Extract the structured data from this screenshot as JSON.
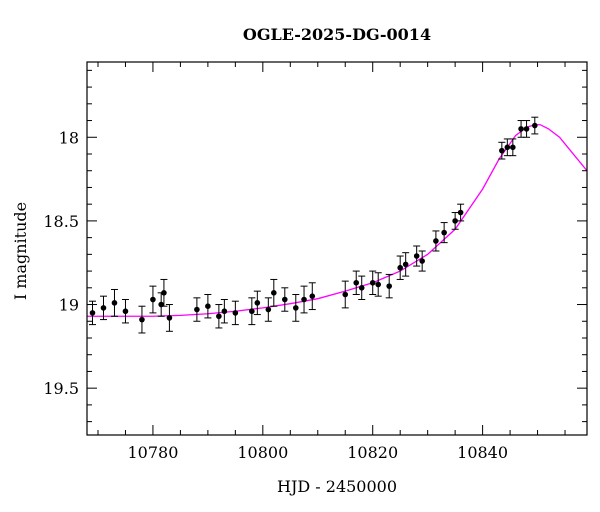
{
  "chart_data": {
    "type": "scatter",
    "title": "OGLE-2025-DG-0014",
    "xlabel": "HJD - 2450000",
    "ylabel": "I magnitude",
    "xlim": [
      10768,
      10859
    ],
    "ylim": [
      19.78,
      17.55
    ],
    "y_inverted": true,
    "grid": false,
    "x_ticks": [
      10780,
      10800,
      10820,
      10840
    ],
    "x_minor_step": 5,
    "y_ticks": [
      18,
      18.5,
      19,
      19.5
    ],
    "y_tick_labels": [
      "18",
      "18.5",
      "19",
      "19.5"
    ],
    "y_minor_step": 0.1,
    "colors": {
      "points": "#000000",
      "model": "#ff00ff",
      "axes": "#000000"
    },
    "series": [
      {
        "type": "scatter",
        "x": [
          10769,
          10771,
          10773,
          10775,
          10778,
          10780,
          10781.5,
          10782,
          10783,
          10788,
          10790,
          10792,
          10793,
          10795,
          10798,
          10799,
          10801,
          10802,
          10804,
          10806,
          10807.5,
          10809,
          10815,
          10817,
          10818,
          10820,
          10821,
          10823,
          10825,
          10826,
          10828,
          10829,
          10831.5,
          10833,
          10835,
          10836,
          10843.5,
          10844.5,
          10845.5,
          10847,
          10848,
          10849.5
        ],
        "y": [
          19.05,
          19.02,
          18.99,
          19.04,
          19.09,
          18.97,
          19.0,
          18.93,
          19.08,
          19.03,
          19.01,
          19.07,
          19.04,
          19.05,
          19.04,
          18.99,
          19.03,
          18.93,
          18.97,
          19.02,
          18.97,
          18.95,
          18.94,
          18.87,
          18.9,
          18.87,
          18.88,
          18.89,
          18.78,
          18.76,
          18.71,
          18.74,
          18.62,
          18.57,
          18.5,
          18.45,
          18.08,
          18.06,
          18.06,
          17.95,
          17.95,
          17.93
        ],
        "yerr": [
          0.07,
          0.07,
          0.08,
          0.07,
          0.08,
          0.08,
          0.07,
          0.08,
          0.08,
          0.07,
          0.07,
          0.07,
          0.07,
          0.07,
          0.08,
          0.07,
          0.07,
          0.08,
          0.07,
          0.08,
          0.08,
          0.08,
          0.08,
          0.07,
          0.07,
          0.07,
          0.07,
          0.07,
          0.07,
          0.07,
          0.06,
          0.06,
          0.06,
          0.06,
          0.05,
          0.05,
          0.05,
          0.05,
          0.05,
          0.05,
          0.05,
          0.05
        ]
      },
      {
        "type": "line",
        "x": [
          10768,
          10775,
          10780,
          10785,
          10790,
          10795,
          10800,
          10805,
          10810,
          10815,
          10820,
          10825,
          10830,
          10835,
          10840,
          10843,
          10846,
          10848,
          10849.5,
          10850.5,
          10852,
          10854,
          10856,
          10859
        ],
        "y": [
          19.07,
          19.07,
          19.07,
          19.065,
          19.055,
          19.04,
          19.02,
          18.995,
          18.965,
          18.92,
          18.87,
          18.8,
          18.7,
          18.55,
          18.31,
          18.13,
          17.99,
          17.94,
          17.925,
          17.925,
          17.95,
          18.0,
          18.08,
          18.2
        ]
      }
    ]
  }
}
